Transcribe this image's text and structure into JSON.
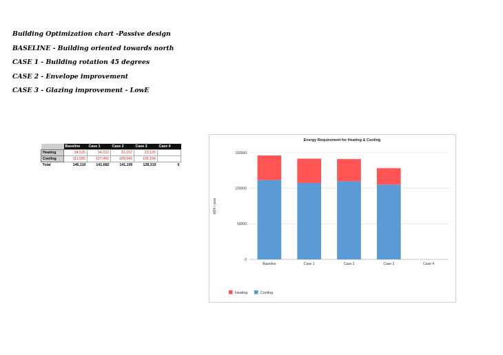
{
  "headings": [
    "Building Optimization chart -Passive design",
    "BASELINE - Building oriented towards north",
    "CASE 1 - Building rotation 45 degrees",
    "CASE 2 - Envelope improvement",
    "CASE 3 - Glazing improvement - LowE"
  ],
  "table": {
    "columns": [
      "Baseline",
      "Case 1",
      "Case 2",
      "Case 3",
      "Case 4"
    ],
    "rows": [
      {
        "label": "Heating",
        "values": [
          "34,525",
          "34,222",
          "31,157",
          "23,125",
          ""
        ]
      },
      {
        "label": "Cooling",
        "values": [
          "111,585",
          "107,460",
          "109,943",
          "105,194",
          ""
        ]
      },
      {
        "label": "Total",
        "values": [
          "146,110",
          "141,682",
          "141,100",
          "128,319",
          "0"
        ]
      }
    ]
  },
  "chart_data": {
    "type": "bar",
    "stacked": true,
    "title": "Energy Requirement for Heating & Cooling",
    "ylabel": "kWh / year",
    "xlabel": "",
    "categories": [
      "Baseline",
      "Case 1",
      "Case 2",
      "Case 3",
      "Case 4"
    ],
    "series": [
      {
        "name": "Cooling",
        "color": "#5b9bd5",
        "values": [
          111585,
          107460,
          109943,
          105194,
          0
        ]
      },
      {
        "name": "Heating",
        "color": "#ff5555",
        "values": [
          34525,
          34222,
          31157,
          23125,
          0
        ]
      }
    ],
    "ylim": [
      0,
      150000
    ],
    "yticks": [
      "0",
      "50000",
      "100000",
      "150000"
    ],
    "grid": true,
    "legend": {
      "position": "bottom-left",
      "entries": [
        "Heating",
        "Cooling"
      ]
    }
  }
}
